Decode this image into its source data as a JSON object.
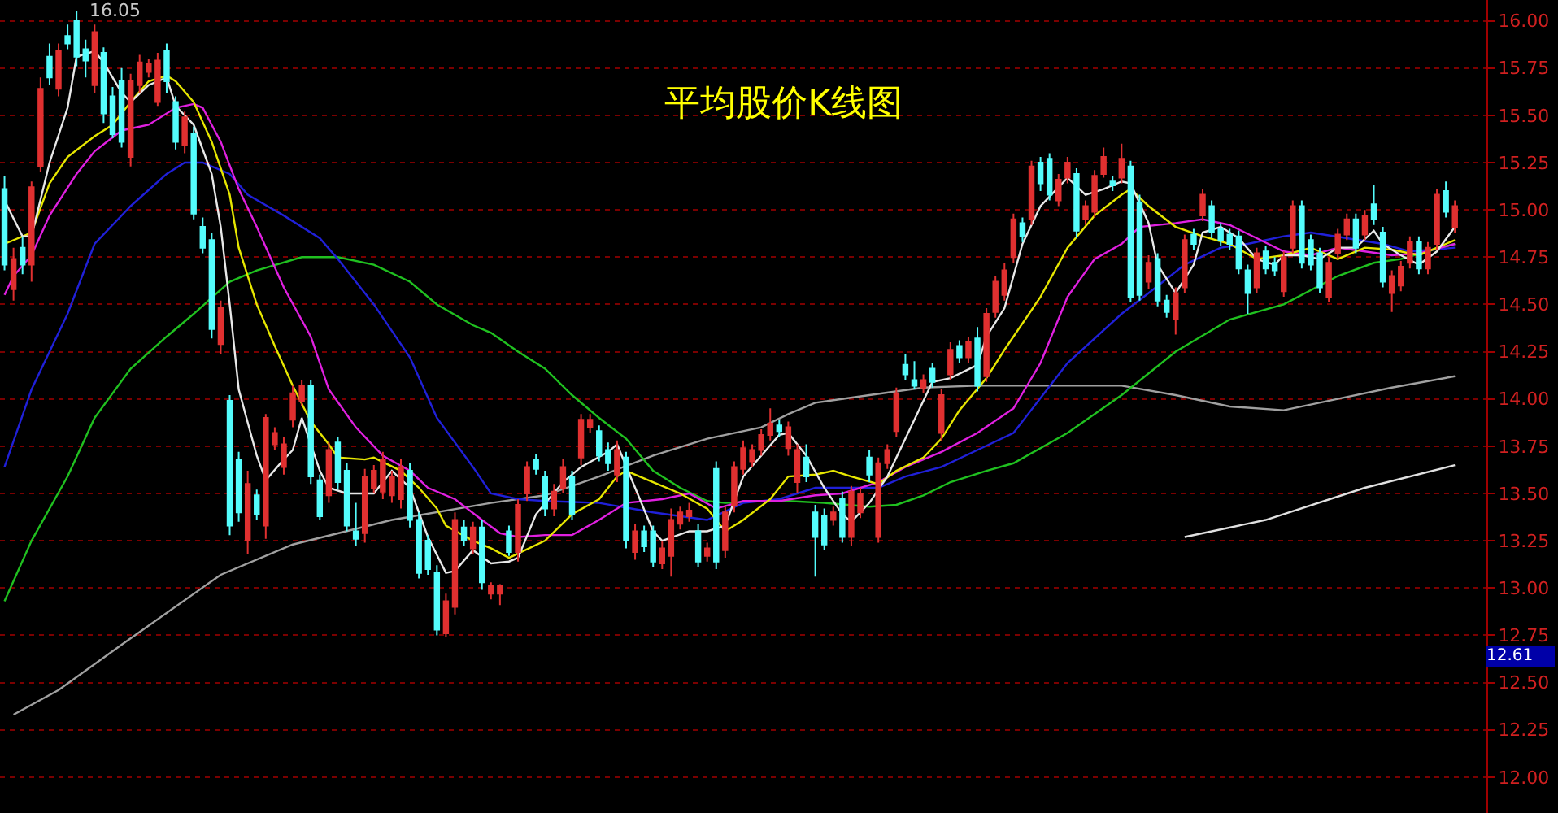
{
  "chart_data": {
    "type": "candlestick",
    "title": "平均股价K线图",
    "categories": [
      null,
      null,
      null,
      null,
      null,
      null,
      null,
      null,
      null,
      null,
      null,
      null,
      null,
      null,
      null,
      null,
      null,
      null,
      null,
      null,
      null,
      null,
      null,
      null,
      null,
      null,
      null,
      null,
      null,
      null,
      null,
      null,
      null,
      null,
      null,
      null,
      null,
      null,
      null,
      null,
      null,
      null,
      null,
      null,
      null,
      null,
      null,
      null,
      null,
      null,
      null,
      null,
      null,
      null,
      null,
      null,
      null,
      null,
      null,
      null,
      null,
      null,
      null,
      null,
      null,
      null,
      null,
      null,
      null,
      null,
      null,
      null,
      null,
      null,
      null,
      null,
      null,
      null,
      null,
      null,
      null,
      null,
      null,
      null,
      null,
      null,
      null,
      null,
      null,
      null,
      null,
      null,
      null,
      null,
      null,
      null,
      null,
      null,
      null,
      null,
      null,
      null,
      null,
      null,
      null,
      null,
      null,
      null,
      null,
      null,
      null,
      null,
      null,
      null,
      null,
      null,
      null,
      null,
      null,
      null,
      null,
      null,
      null,
      null,
      null,
      null,
      null,
      null,
      null,
      null,
      null,
      null,
      null,
      null,
      null,
      null,
      null,
      null,
      null,
      null,
      null,
      null,
      null,
      null,
      null,
      null,
      null,
      null,
      null,
      null,
      null,
      null,
      null,
      null,
      null,
      null,
      null,
      null,
      null,
      null,
      null,
      null
    ],
    "ohlc": [
      [
        15.11,
        15.18,
        14.68,
        14.71
      ],
      [
        14.58,
        14.8,
        14.52,
        14.74
      ],
      [
        14.8,
        14.86,
        14.66,
        14.71
      ],
      [
        14.71,
        15.15,
        14.62,
        15.12
      ],
      [
        15.23,
        15.7,
        15.2,
        15.64
      ],
      [
        15.81,
        15.88,
        15.66,
        15.7
      ],
      [
        15.64,
        15.88,
        15.6,
        15.84
      ],
      [
        15.92,
        15.98,
        15.85,
        15.88
      ],
      [
        16.0,
        16.05,
        15.76,
        15.81
      ],
      [
        15.85,
        15.9,
        15.7,
        15.79
      ],
      [
        15.66,
        15.98,
        15.62,
        15.94
      ],
      [
        15.83,
        15.86,
        15.46,
        15.51
      ],
      [
        15.6,
        15.65,
        15.38,
        15.4
      ],
      [
        15.68,
        15.75,
        15.33,
        15.36
      ],
      [
        15.28,
        15.72,
        15.23,
        15.68
      ],
      [
        15.66,
        15.82,
        15.62,
        15.78
      ],
      [
        15.73,
        15.8,
        15.7,
        15.77
      ],
      [
        15.57,
        15.83,
        15.55,
        15.79
      ],
      [
        15.84,
        15.88,
        15.62,
        15.68
      ],
      [
        15.57,
        15.6,
        15.32,
        15.36
      ],
      [
        15.34,
        15.52,
        15.3,
        15.49
      ],
      [
        15.4,
        15.44,
        14.95,
        14.98
      ],
      [
        14.91,
        14.96,
        14.77,
        14.8
      ],
      [
        14.84,
        14.88,
        14.32,
        14.37
      ],
      [
        14.29,
        14.52,
        14.24,
        14.48
      ],
      [
        13.99,
        14.02,
        13.28,
        13.33
      ],
      [
        13.68,
        13.72,
        13.35,
        13.4
      ],
      [
        13.25,
        13.62,
        13.18,
        13.55
      ],
      [
        13.49,
        13.52,
        13.36,
        13.39
      ],
      [
        13.33,
        13.92,
        13.26,
        13.9
      ],
      [
        13.76,
        13.85,
        13.73,
        13.82
      ],
      [
        13.64,
        13.8,
        13.6,
        13.76
      ],
      [
        13.89,
        14.07,
        13.85,
        14.03
      ],
      [
        13.99,
        14.1,
        13.96,
        14.07
      ],
      [
        14.07,
        14.1,
        13.55,
        13.59
      ],
      [
        13.57,
        13.6,
        13.36,
        13.38
      ],
      [
        13.49,
        13.77,
        13.45,
        13.73
      ],
      [
        13.77,
        13.8,
        13.52,
        13.56
      ],
      [
        13.62,
        13.66,
        13.3,
        13.33
      ],
      [
        13.3,
        13.45,
        13.22,
        13.26
      ],
      [
        13.29,
        13.63,
        13.24,
        13.59
      ],
      [
        13.53,
        13.65,
        13.5,
        13.62
      ],
      [
        13.51,
        13.72,
        13.47,
        13.68
      ],
      [
        13.49,
        13.62,
        13.45,
        13.59
      ],
      [
        13.47,
        13.68,
        13.42,
        13.64
      ],
      [
        13.62,
        13.66,
        13.32,
        13.36
      ],
      [
        13.36,
        13.4,
        13.05,
        13.08
      ],
      [
        13.25,
        13.28,
        13.07,
        13.1
      ],
      [
        13.08,
        13.12,
        12.75,
        12.78
      ],
      [
        12.76,
        12.97,
        12.74,
        12.93
      ],
      [
        12.9,
        13.4,
        12.86,
        13.36
      ],
      [
        13.32,
        13.36,
        13.22,
        13.25
      ],
      [
        13.21,
        13.35,
        13.18,
        13.32
      ],
      [
        13.32,
        13.36,
        12.99,
        13.03
      ],
      [
        12.97,
        13.03,
        12.94,
        13.01
      ],
      [
        12.97,
        13.02,
        12.91,
        13.01
      ],
      [
        13.3,
        13.33,
        13.17,
        13.19
      ],
      [
        13.19,
        13.47,
        13.14,
        13.44
      ],
      [
        13.5,
        13.67,
        13.46,
        13.64
      ],
      [
        13.68,
        13.71,
        13.6,
        13.63
      ],
      [
        13.59,
        13.62,
        13.38,
        13.42
      ],
      [
        13.42,
        13.55,
        13.38,
        13.51
      ],
      [
        13.53,
        13.68,
        13.5,
        13.64
      ],
      [
        13.59,
        13.62,
        13.36,
        13.39
      ],
      [
        13.69,
        13.92,
        13.65,
        13.89
      ],
      [
        13.85,
        13.92,
        13.82,
        13.89
      ],
      [
        13.83,
        13.86,
        13.67,
        13.7
      ],
      [
        13.73,
        13.77,
        13.62,
        13.66
      ],
      [
        13.6,
        13.78,
        13.56,
        13.73
      ],
      [
        13.69,
        13.72,
        13.21,
        13.25
      ],
      [
        13.19,
        13.34,
        13.15,
        13.3
      ],
      [
        13.3,
        13.33,
        13.19,
        13.22
      ],
      [
        13.3,
        13.33,
        13.11,
        13.14
      ],
      [
        13.13,
        13.25,
        13.1,
        13.21
      ],
      [
        13.17,
        13.42,
        13.06,
        13.36
      ],
      [
        13.34,
        13.43,
        13.31,
        13.4
      ],
      [
        13.38,
        13.45,
        13.35,
        13.41
      ],
      [
        13.3,
        13.34,
        13.11,
        13.14
      ],
      [
        13.17,
        13.24,
        13.14,
        13.21
      ],
      [
        13.63,
        13.67,
        13.1,
        13.14
      ],
      [
        13.2,
        13.43,
        13.16,
        13.4
      ],
      [
        13.44,
        13.67,
        13.4,
        13.64
      ],
      [
        13.63,
        13.78,
        13.6,
        13.74
      ],
      [
        13.67,
        13.76,
        13.64,
        13.73
      ],
      [
        13.73,
        13.84,
        13.7,
        13.81
      ],
      [
        13.81,
        13.95,
        13.78,
        13.87
      ],
      [
        13.86,
        13.89,
        13.8,
        13.83
      ],
      [
        13.74,
        13.88,
        13.7,
        13.85
      ],
      [
        13.56,
        13.76,
        13.5,
        13.73
      ],
      [
        13.69,
        13.76,
        13.56,
        13.59
      ],
      [
        13.4,
        13.44,
        13.06,
        13.27
      ],
      [
        13.38,
        13.42,
        13.2,
        13.23
      ],
      [
        13.36,
        13.43,
        13.33,
        13.4
      ],
      [
        13.47,
        13.51,
        13.24,
        13.27
      ],
      [
        13.27,
        13.54,
        13.22,
        13.51
      ],
      [
        13.4,
        13.53,
        13.37,
        13.5
      ],
      [
        13.69,
        13.73,
        13.56,
        13.6
      ],
      [
        13.27,
        13.69,
        13.24,
        13.66
      ],
      [
        13.66,
        13.76,
        13.63,
        13.73
      ],
      [
        13.83,
        14.06,
        13.8,
        14.03
      ],
      [
        14.18,
        14.24,
        14.1,
        14.13
      ],
      [
        14.1,
        14.2,
        14.05,
        14.07
      ],
      [
        14.06,
        14.13,
        14.03,
        14.1
      ],
      [
        14.16,
        14.19,
        14.06,
        14.09
      ],
      [
        13.82,
        14.05,
        13.78,
        14.02
      ],
      [
        14.13,
        14.3,
        14.1,
        14.26
      ],
      [
        14.28,
        14.31,
        14.19,
        14.22
      ],
      [
        14.22,
        14.33,
        14.19,
        14.3
      ],
      [
        14.32,
        14.38,
        14.04,
        14.07
      ],
      [
        14.12,
        14.48,
        14.09,
        14.45
      ],
      [
        14.46,
        14.65,
        14.43,
        14.62
      ],
      [
        14.55,
        14.72,
        14.52,
        14.68
      ],
      [
        14.75,
        14.98,
        14.72,
        14.95
      ],
      [
        14.93,
        14.96,
        14.83,
        14.86
      ],
      [
        14.95,
        15.26,
        14.92,
        15.23
      ],
      [
        15.25,
        15.28,
        15.1,
        15.14
      ],
      [
        15.27,
        15.3,
        15.05,
        15.08
      ],
      [
        15.05,
        15.19,
        15.02,
        15.16
      ],
      [
        15.17,
        15.28,
        15.14,
        15.25
      ],
      [
        15.19,
        15.22,
        14.85,
        14.89
      ],
      [
        14.95,
        15.05,
        14.92,
        15.02
      ],
      [
        14.99,
        15.21,
        14.96,
        15.18
      ],
      [
        15.19,
        15.33,
        15.17,
        15.28
      ],
      [
        15.15,
        15.18,
        15.1,
        15.13
      ],
      [
        15.17,
        15.35,
        15.14,
        15.27
      ],
      [
        15.23,
        15.26,
        14.51,
        14.54
      ],
      [
        15.04,
        15.08,
        14.52,
        14.55
      ],
      [
        14.62,
        14.76,
        14.58,
        14.72
      ],
      [
        14.74,
        14.77,
        14.49,
        14.52
      ],
      [
        14.52,
        14.55,
        14.43,
        14.46
      ],
      [
        14.42,
        14.59,
        14.34,
        14.56
      ],
      [
        14.59,
        14.87,
        14.56,
        14.84
      ],
      [
        14.87,
        14.9,
        14.79,
        14.82
      ],
      [
        14.97,
        15.11,
        14.94,
        15.08
      ],
      [
        15.02,
        15.05,
        14.85,
        14.88
      ],
      [
        14.9,
        14.93,
        14.81,
        14.84
      ],
      [
        14.87,
        14.9,
        14.79,
        14.82
      ],
      [
        14.86,
        14.89,
        14.66,
        14.69
      ],
      [
        14.68,
        14.71,
        14.45,
        14.56
      ],
      [
        14.59,
        14.8,
        14.56,
        14.77
      ],
      [
        14.78,
        14.81,
        14.66,
        14.69
      ],
      [
        14.72,
        14.75,
        14.65,
        14.68
      ],
      [
        14.57,
        14.78,
        14.54,
        14.75
      ],
      [
        14.8,
        15.05,
        14.77,
        15.02
      ],
      [
        15.02,
        15.05,
        14.69,
        14.72
      ],
      [
        14.84,
        14.87,
        14.68,
        14.71
      ],
      [
        14.77,
        14.8,
        14.56,
        14.59
      ],
      [
        14.54,
        14.75,
        14.51,
        14.72
      ],
      [
        14.77,
        14.9,
        14.74,
        14.87
      ],
      [
        14.87,
        14.98,
        14.84,
        14.95
      ],
      [
        14.95,
        14.98,
        14.77,
        14.8
      ],
      [
        14.87,
        15.0,
        14.84,
        14.97
      ],
      [
        15.03,
        15.13,
        14.92,
        14.95
      ],
      [
        14.88,
        14.91,
        14.59,
        14.62
      ],
      [
        14.56,
        14.68,
        14.46,
        14.65
      ],
      [
        14.6,
        14.73,
        14.57,
        14.7
      ],
      [
        14.72,
        14.86,
        14.69,
        14.83
      ],
      [
        14.83,
        14.86,
        14.66,
        14.69
      ],
      [
        14.69,
        14.83,
        14.66,
        14.8
      ],
      [
        14.82,
        15.11,
        14.79,
        15.08
      ],
      [
        15.1,
        15.15,
        14.96,
        14.99
      ],
      [
        14.91,
        15.05,
        14.88,
        15.02
      ]
    ],
    "colors": [
      "#54fcfc",
      "#e03030",
      "#54fcfc",
      "#e03030",
      "#e03030",
      "#54fcfc",
      "#e03030",
      "#54fcfc",
      "#54fcfc",
      "#54fcfc",
      "#e03030",
      "#54fcfc",
      "#54fcfc",
      "#54fcfc",
      "#e03030",
      "#e03030",
      "#e03030",
      "#e03030",
      "#54fcfc",
      "#54fcfc",
      "#e03030",
      "#54fcfc",
      "#54fcfc",
      "#54fcfc",
      "#e03030",
      "#54fcfc",
      "#54fcfc",
      "#e03030",
      "#54fcfc",
      "#e03030",
      "#e03030",
      "#e03030",
      "#e03030",
      "#e03030",
      "#54fcfc",
      "#54fcfc",
      "#e03030",
      "#54fcfc",
      "#54fcfc",
      "#54fcfc",
      "#e03030",
      "#e03030",
      "#e03030",
      "#e03030",
      "#e03030",
      "#54fcfc",
      "#54fcfc",
      "#54fcfc",
      "#54fcfc",
      "#e03030",
      "#e03030",
      "#54fcfc",
      "#e03030",
      "#54fcfc",
      "#e03030",
      "#e03030",
      "#54fcfc",
      "#e03030",
      "#e03030",
      "#54fcfc",
      "#54fcfc",
      "#e03030",
      "#e03030",
      "#54fcfc",
      "#e03030",
      "#e03030",
      "#54fcfc",
      "#54fcfc",
      "#e03030",
      "#54fcfc",
      "#e03030",
      "#54fcfc",
      "#54fcfc",
      "#e03030",
      "#e03030",
      "#e03030",
      "#e03030",
      "#54fcfc",
      "#e03030",
      "#54fcfc",
      "#e03030",
      "#e03030",
      "#e03030",
      "#e03030",
      "#e03030",
      "#e03030",
      "#54fcfc",
      "#e03030",
      "#e03030",
      "#54fcfc",
      "#54fcfc",
      "#54fcfc",
      "#e03030",
      "#54fcfc",
      "#e03030",
      "#e03030",
      "#54fcfc",
      "#e03030",
      "#e03030",
      "#e03030",
      "#54fcfc",
      "#54fcfc",
      "#e03030",
      "#54fcfc",
      "#e03030",
      "#e03030",
      "#54fcfc",
      "#e03030",
      "#54fcfc",
      "#e03030",
      "#e03030",
      "#e03030",
      "#e03030",
      "#54fcfc",
      "#e03030",
      "#54fcfc",
      "#54fcfc",
      "#e03030",
      "#e03030",
      "#54fcfc",
      "#e03030",
      "#e03030",
      "#e03030",
      "#54fcfc",
      "#e03030",
      "#54fcfc",
      "#54fcfc",
      "#e03030",
      "#54fcfc",
      "#54fcfc",
      "#e03030",
      "#e03030",
      "#54fcfc",
      "#e03030",
      "#54fcfc",
      "#54fcfc",
      "#54fcfc",
      "#54fcfc",
      "#54fcfc",
      "#e03030",
      "#54fcfc",
      "#54fcfc",
      "#e03030",
      "#e03030",
      "#54fcfc",
      "#54fcfc",
      "#54fcfc",
      "#e03030",
      "#e03030",
      "#e03030",
      "#54fcfc",
      "#e03030",
      "#54fcfc",
      "#54fcfc",
      "#e03030",
      "#e03030",
      "#e03030",
      "#54fcfc",
      "#e03030",
      "#e03030",
      "#54fcfc",
      "#e03030"
    ],
    "series": [
      {
        "type": "line",
        "color": "#a0a0a0",
        "values": [
          null,
          12.33,
          null,
          null,
          null,
          null,
          12.46,
          null,
          null,
          null,
          null,
          null,
          null,
          12.7,
          null,
          null,
          null,
          null,
          null,
          null,
          null,
          null,
          null,
          null,
          13.07,
          null,
          null,
          null,
          null,
          null,
          null,
          null,
          13.23,
          null,
          null,
          null,
          null,
          null,
          null,
          null,
          null,
          null,
          null,
          13.36,
          null,
          null,
          null,
          null,
          null,
          null,
          null,
          null,
          null,
          null,
          13.45,
          null,
          null,
          null,
          null,
          null,
          13.49,
          null,
          null,
          null,
          null,
          null,
          13.59,
          null,
          null,
          null,
          null,
          null,
          13.7,
          null,
          null,
          null,
          null,
          null,
          13.79,
          null,
          null,
          null,
          null,
          null,
          13.85,
          null,
          null,
          13.92,
          null,
          null,
          13.98,
          null,
          null,
          null,
          null,
          null,
          14.02,
          null,
          null,
          null,
          null,
          null,
          14.06,
          null,
          null,
          null,
          null,
          null,
          14.07,
          null,
          null,
          null,
          14.07,
          null,
          null,
          null,
          null,
          null,
          null,
          null,
          null,
          null,
          null,
          null,
          14.07,
          null,
          null,
          null,
          null,
          null,
          14.02,
          null,
          null,
          null,
          null,
          null,
          13.96,
          null,
          null,
          null,
          null,
          null,
          13.94,
          null,
          null,
          null,
          null,
          null,
          14.0,
          null,
          null,
          null,
          null,
          null,
          14.06,
          null,
          null,
          null,
          null,
          null,
          null,
          14.12
        ]
      },
      {
        "type": "line",
        "color": "#e0e0e0",
        "values": [
          null,
          null,
          null,
          null,
          null,
          null,
          null,
          null,
          null,
          null,
          null,
          null,
          null,
          null,
          null,
          null,
          null,
          null,
          null,
          null,
          null,
          null,
          null,
          null,
          null,
          null,
          null,
          null,
          null,
          null,
          null,
          null,
          null,
          null,
          null,
          null,
          null,
          null,
          null,
          null,
          null,
          null,
          null,
          null,
          null,
          null,
          null,
          null,
          null,
          null,
          null,
          null,
          null,
          null,
          null,
          null,
          null,
          null,
          null,
          null,
          null,
          null,
          null,
          null,
          null,
          null,
          null,
          null,
          null,
          null,
          null,
          null,
          null,
          null,
          null,
          null,
          null,
          null,
          null,
          null,
          null,
          null,
          null,
          null,
          null,
          null,
          null,
          null,
          null,
          null,
          null,
          null,
          null,
          null,
          null,
          null,
          null,
          null,
          null,
          null,
          null,
          null,
          null,
          null,
          null,
          null,
          null,
          null,
          null,
          null,
          null,
          null,
          null,
          null,
          null,
          null,
          null,
          null,
          null,
          null,
          null,
          null,
          null,
          null,
          null,
          null,
          null,
          null,
          null,
          null,
          null,
          13.27,
          null,
          null,
          null,
          null,
          null,
          null,
          null,
          null,
          13.36,
          null,
          null,
          null,
          null,
          null,
          null,
          null,
          null,
          null,
          null,
          13.53,
          null,
          null,
          null,
          null,
          null,
          null,
          null,
          null,
          null,
          13.65
        ]
      },
      {
        "type": "line",
        "color": "#20c020",
        "values": [
          12.93,
          null,
          null,
          13.25,
          null,
          null,
          null,
          13.59,
          null,
          null,
          13.9,
          null,
          null,
          null,
          14.16,
          null,
          null,
          null,
          14.33,
          null,
          null,
          14.45,
          null,
          null,
          null,
          14.62,
          null,
          null,
          14.68,
          null,
          null,
          null,
          null,
          14.75,
          null,
          null,
          null,
          14.75,
          null,
          null,
          null,
          14.71,
          null,
          null,
          null,
          14.62,
          null,
          null,
          14.5,
          null,
          null,
          null,
          14.39,
          null,
          14.35,
          null,
          null,
          14.25,
          null,
          null,
          14.16,
          null,
          null,
          14.02,
          null,
          null,
          13.9,
          null,
          null,
          13.79,
          null,
          null,
          13.62,
          null,
          null,
          13.53,
          null,
          null,
          13.46,
          null,
          13.45,
          null,
          null,
          null,
          13.46,
          null,
          null,
          13.46,
          null,
          null,
          null,
          13.45,
          null,
          null,
          null,
          null,
          13.43,
          null,
          null,
          13.44,
          null,
          null,
          13.49,
          null,
          null,
          13.56,
          null,
          null,
          null,
          13.62,
          null,
          null,
          13.66,
          null,
          null,
          null,
          null,
          null,
          13.82,
          null,
          null,
          null,
          null,
          null,
          14.02,
          null,
          null,
          null,
          null,
          null,
          14.25,
          null,
          null,
          null,
          null,
          null,
          14.42,
          null,
          null,
          null,
          null,
          null,
          14.5,
          null,
          null,
          null,
          null,
          null,
          14.65,
          null,
          null,
          null,
          14.72,
          null,
          null,
          14.74,
          null,
          null,
          null,
          null,
          null,
          14.82
        ]
      },
      {
        "type": "line",
        "color": "#2020d8",
        "values": [
          13.64,
          null,
          null,
          14.05,
          null,
          null,
          null,
          14.45,
          null,
          null,
          14.82,
          null,
          null,
          null,
          15.02,
          null,
          null,
          null,
          15.19,
          null,
          15.25,
          null,
          15.25,
          null,
          null,
          15.19,
          null,
          15.08,
          null,
          null,
          null,
          14.97,
          null,
          null,
          null,
          14.85,
          null,
          14.74,
          null,
          null,
          null,
          14.5,
          null,
          null,
          null,
          14.22,
          null,
          null,
          13.9,
          null,
          null,
          null,
          13.64,
          null,
          13.5,
          null,
          null,
          13.47,
          null,
          null,
          13.46,
          null,
          null,
          null,
          null,
          null,
          13.45,
          null,
          null,
          null,
          null,
          null,
          13.4,
          null,
          null,
          null,
          null,
          null,
          13.36,
          null,
          null,
          null,
          13.45,
          null,
          null,
          null,
          13.47,
          null,
          null,
          null,
          13.53,
          null,
          null,
          null,
          null,
          null,
          null,
          13.53,
          null,
          null,
          13.59,
          null,
          null,
          null,
          13.64,
          null,
          null,
          null,
          13.73,
          null,
          null,
          null,
          13.82,
          null,
          null,
          null,
          null,
          null,
          14.19,
          null,
          null,
          null,
          null,
          null,
          14.45,
          null,
          null,
          14.56,
          null,
          null,
          null,
          14.71,
          null,
          null,
          null,
          14.8,
          null,
          null,
          14.82,
          null,
          null,
          null,
          14.86,
          null,
          null,
          14.88,
          null,
          null,
          null,
          14.85,
          null,
          null,
          null,
          14.82,
          null,
          null,
          14.78,
          null,
          null,
          null,
          null,
          14.8
        ]
      },
      {
        "type": "line",
        "color": "#e020e0",
        "values": [
          14.55,
          14.65,
          null,
          14.76,
          null,
          14.97,
          null,
          null,
          15.19,
          null,
          15.31,
          null,
          null,
          15.42,
          null,
          null,
          15.45,
          null,
          null,
          15.54,
          null,
          15.56,
          15.54,
          null,
          15.36,
          null,
          15.11,
          null,
          14.91,
          null,
          null,
          14.59,
          null,
          null,
          14.33,
          null,
          14.05,
          null,
          null,
          13.85,
          null,
          null,
          13.7,
          null,
          null,
          13.62,
          null,
          13.53,
          null,
          null,
          13.47,
          null,
          null,
          13.36,
          null,
          13.29,
          null,
          13.27,
          null,
          null,
          13.28,
          null,
          null,
          13.28,
          null,
          null,
          13.36,
          null,
          null,
          13.45,
          null,
          null,
          null,
          13.47,
          null,
          null,
          13.5,
          null,
          null,
          13.42,
          null,
          null,
          13.46,
          null,
          null,
          null,
          13.46,
          null,
          null,
          null,
          13.49,
          null,
          null,
          13.5,
          null,
          null,
          null,
          13.56,
          null,
          null,
          13.64,
          null,
          null,
          null,
          13.72,
          null,
          null,
          null,
          13.82,
          null,
          null,
          null,
          13.95,
          null,
          null,
          14.19,
          null,
          null,
          14.54,
          null,
          null,
          14.74,
          null,
          null,
          14.82,
          null,
          14.91,
          null,
          null,
          null,
          14.93,
          null,
          null,
          14.95,
          null,
          null,
          14.92,
          null,
          null,
          14.85,
          null,
          null,
          14.78,
          null,
          null,
          14.76,
          null,
          null,
          14.8,
          null,
          null,
          14.78,
          null,
          null,
          14.76,
          null,
          null,
          14.77,
          null,
          null,
          null,
          14.82
        ]
      },
      {
        "type": "line",
        "color": "#e6e600",
        "values": [
          14.82,
          null,
          null,
          14.88,
          null,
          15.14,
          null,
          15.28,
          null,
          null,
          15.39,
          null,
          15.45,
          null,
          15.57,
          null,
          15.68,
          null,
          15.71,
          15.68,
          null,
          15.57,
          null,
          15.36,
          null,
          15.08,
          14.8,
          null,
          14.5,
          null,
          14.28,
          null,
          14.07,
          null,
          13.88,
          null,
          13.76,
          13.69,
          null,
          null,
          13.68,
          13.69,
          null,
          null,
          13.62,
          null,
          13.53,
          null,
          13.42,
          13.33,
          null,
          null,
          13.25,
          null,
          13.21,
          null,
          13.16,
          null,
          null,
          null,
          13.25,
          null,
          null,
          13.39,
          null,
          null,
          13.47,
          null,
          13.59,
          13.62,
          null,
          null,
          13.56,
          null,
          null,
          13.5,
          null,
          null,
          13.42,
          null,
          13.3,
          null,
          13.36,
          null,
          null,
          13.47,
          null,
          13.59,
          null,
          null,
          13.6,
          null,
          13.62,
          null,
          13.59,
          null,
          null,
          13.55,
          null,
          13.62,
          null,
          null,
          13.69,
          null,
          13.79,
          null,
          13.94,
          null,
          null,
          14.11,
          null,
          14.26,
          null,
          null,
          null,
          14.54,
          null,
          null,
          14.8,
          null,
          null,
          14.97,
          null,
          null,
          15.08,
          15.11,
          null,
          15.02,
          null,
          null,
          14.91,
          null,
          null,
          14.86,
          null,
          null,
          14.82,
          null,
          null,
          14.74,
          null,
          null,
          14.76,
          null,
          null,
          14.8,
          null,
          null,
          14.74,
          null,
          null,
          14.8,
          null,
          null,
          14.79,
          null,
          null,
          14.76,
          null,
          null,
          null,
          14.84
        ]
      },
      {
        "type": "line",
        "color": "#e8e8e8",
        "values": [
          15.05,
          null,
          14.86,
          14.86,
          null,
          15.25,
          null,
          15.54,
          15.81,
          null,
          15.84,
          15.78,
          null,
          15.62,
          15.57,
          null,
          15.66,
          null,
          15.7,
          15.55,
          null,
          15.45,
          null,
          15.19,
          14.91,
          14.5,
          14.05,
          null,
          13.7,
          13.57,
          null,
          13.68,
          13.73,
          13.9,
          null,
          13.62,
          13.53,
          null,
          13.5,
          null,
          null,
          13.5,
          null,
          13.62,
          null,
          13.53,
          null,
          13.27,
          null,
          13.08,
          13.09,
          null,
          13.2,
          null,
          13.13,
          null,
          13.14,
          13.16,
          null,
          13.39,
          null,
          null,
          13.56,
          null,
          13.64,
          null,
          null,
          13.72,
          13.76,
          null,
          13.53,
          null,
          13.3,
          13.25,
          null,
          null,
          13.3,
          null,
          13.3,
          null,
          13.33,
          null,
          13.59,
          null,
          13.7,
          null,
          13.81,
          13.82,
          null,
          13.7,
          null,
          13.53,
          null,
          13.39,
          13.35,
          null,
          13.45,
          null,
          13.59,
          null,
          13.79,
          null,
          13.99,
          14.09,
          null,
          14.11,
          null,
          null,
          14.18,
          14.33,
          null,
          14.48,
          null,
          14.82,
          null,
          15.02,
          null,
          null,
          15.17,
          null,
          15.08,
          null,
          15.11,
          null,
          15.15,
          15.14,
          null,
          14.93,
          14.71,
          null,
          14.56,
          null,
          14.71,
          14.88,
          null,
          14.91,
          null,
          14.85,
          null,
          14.74,
          null,
          14.71,
          14.76,
          null,
          14.76,
          null,
          14.74,
          null,
          14.8,
          null,
          14.8,
          null,
          14.89,
          14.82,
          null,
          14.76,
          null,
          14.71,
          null,
          14.78,
          null,
          14.91
        ]
      }
    ],
    "ylim": [
      11.81,
      16.11
    ],
    "yticks": [
      {
        "value": 12,
        "label": "12.00"
      },
      {
        "value": 12.25,
        "label": "12.25"
      },
      {
        "value": 12.5,
        "label": "12.50"
      },
      {
        "value": 12.75,
        "label": "12.75"
      },
      {
        "value": 13,
        "label": "13.00"
      },
      {
        "value": 13.25,
        "label": "13.25"
      },
      {
        "value": 13.5,
        "label": "13.50"
      },
      {
        "value": 13.75,
        "label": "13.75"
      },
      {
        "value": 14,
        "label": "14.00"
      },
      {
        "value": 14.25,
        "label": "14.25"
      },
      {
        "value": 14.5,
        "label": "14.50"
      },
      {
        "value": 14.75,
        "label": "14.75"
      },
      {
        "value": 15,
        "label": "15.00"
      },
      {
        "value": 15.25,
        "label": "15.25"
      },
      {
        "value": 15.5,
        "label": "15.50"
      },
      {
        "value": 15.75,
        "label": "15.75"
      },
      {
        "value": 16,
        "label": "16.00"
      }
    ],
    "annotations": [
      "16.05",
      "12.61"
    ],
    "grid": "y",
    "tick_labels": "y"
  }
}
